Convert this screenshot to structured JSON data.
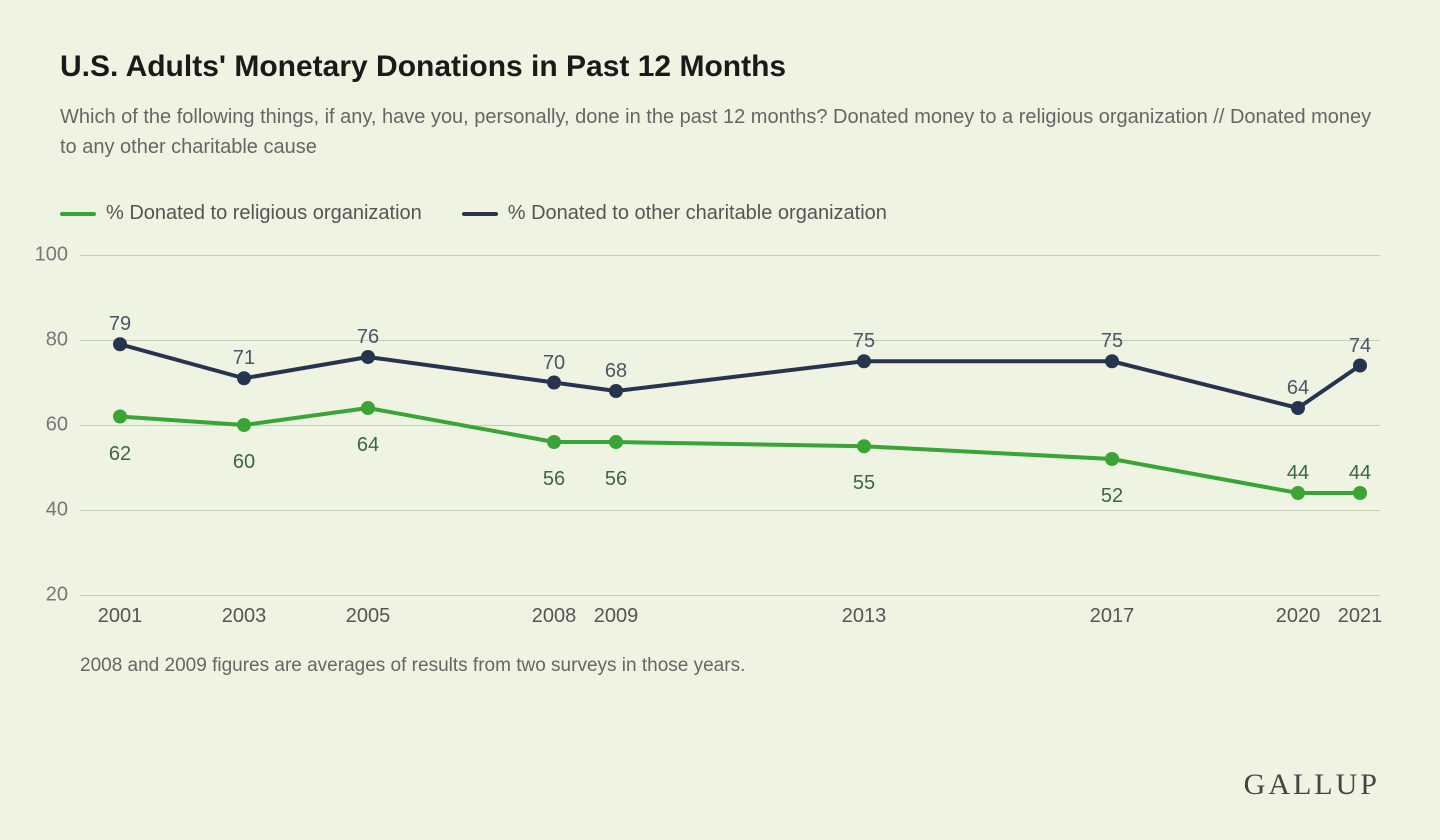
{
  "title": "U.S. Adults' Monetary Donations in Past 12 Months",
  "subtitle": "Which of the following things, if any, have you, personally, done in the past 12 months? Donated money to a religious organization // Donated money to any other charitable cause",
  "legend": {
    "series1": "% Donated to religious organization",
    "series2": "% Donated to other charitable organization"
  },
  "footnote": "2008 and 2009 figures are averages of results from two surveys in those years.",
  "brand": "GALLUP",
  "chart": {
    "type": "line",
    "background_color": "#eef3e2",
    "grid_color": "#c5ccb8",
    "text_color": "#555555",
    "ylim": [
      20,
      100
    ],
    "yticks": [
      20,
      40,
      60,
      80,
      100
    ],
    "xrange": [
      2001,
      2021
    ],
    "x_years": [
      2001,
      2003,
      2005,
      2008,
      2009,
      2013,
      2017,
      2020,
      2021
    ],
    "series": [
      {
        "name": "religious",
        "color": "#3aa536",
        "label_color": "#3e6640",
        "line_width": 4,
        "marker_radius": 7,
        "values": [
          62,
          60,
          64,
          56,
          56,
          55,
          52,
          44,
          44
        ],
        "label_dy": [
          26,
          26,
          26,
          26,
          26,
          26,
          26,
          -8,
          -8
        ]
      },
      {
        "name": "other_charitable",
        "color": "#27344f",
        "label_color": "#4a5568",
        "line_width": 4,
        "marker_radius": 7,
        "values": [
          79,
          71,
          76,
          70,
          68,
          75,
          75,
          64,
          74
        ],
        "label_dy": [
          -8,
          -8,
          -8,
          -8,
          -8,
          -8,
          -8,
          -8,
          -8
        ]
      }
    ]
  }
}
